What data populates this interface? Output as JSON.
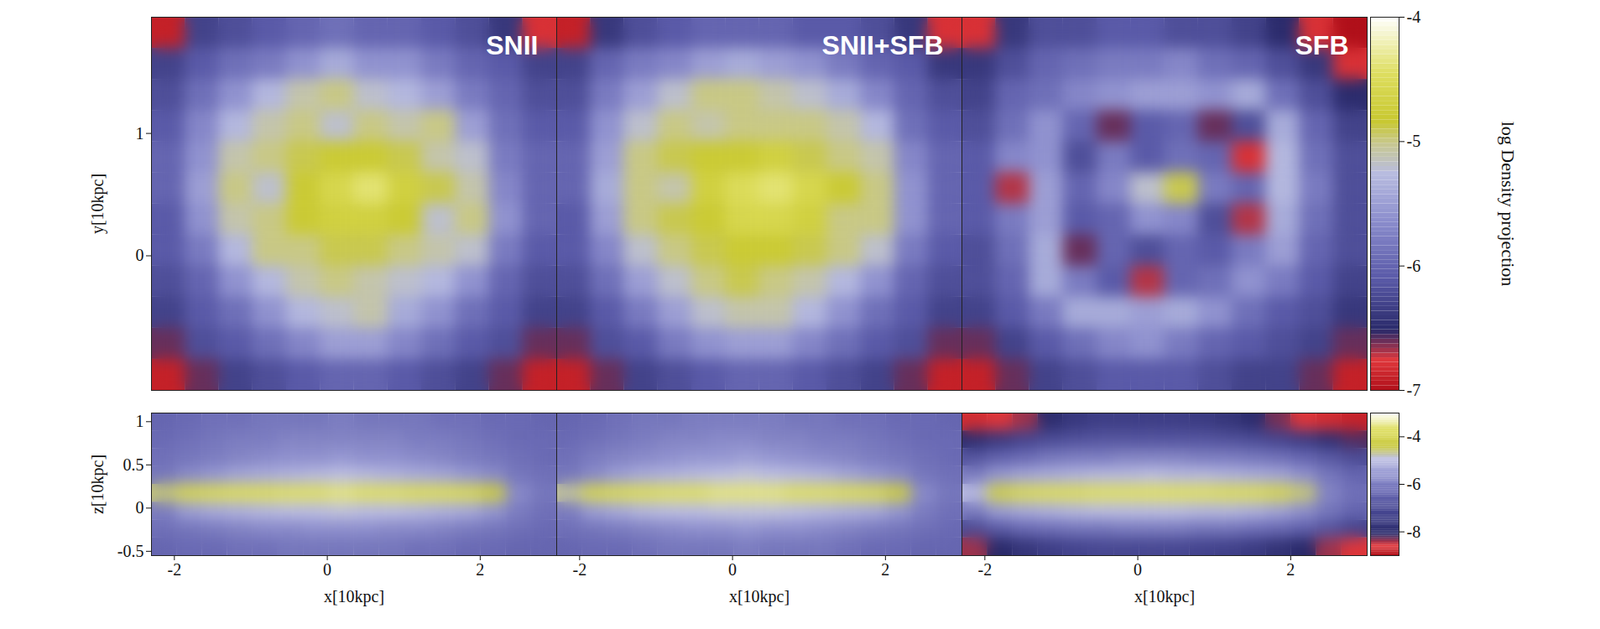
{
  "chart_data": [
    {
      "type": "heatmap",
      "xlim": [
        -1.1,
        2.0
      ],
      "ylim": [
        -1.1,
        1.95
      ],
      "yticks": [
        0,
        1
      ],
      "ylabel": "y[10kpc]",
      "tick_labels": "y",
      "colorbar": {
        "range": [
          -7,
          -4
        ],
        "ticks": [
          -4,
          -5,
          -6,
          -7
        ],
        "label": "log Density projection"
      },
      "panels": [
        {
          "title": "SNII",
          "values": [
            [
              -6.9,
              -6.3,
              -6.2,
              -6.1,
              -6.0,
              -5.9,
              -6.0,
              -6.0,
              -6.1,
              -6.2,
              -6.4,
              -6.8
            ],
            [
              -6.3,
              -6.1,
              -5.9,
              -5.8,
              -5.6,
              -5.4,
              -5.6,
              -5.6,
              -5.8,
              -6.0,
              -6.1,
              -6.3
            ],
            [
              -6.2,
              -5.9,
              -5.6,
              -5.3,
              -5.1,
              -5.0,
              -5.2,
              -5.3,
              -5.5,
              -5.8,
              -6.0,
              -6.2
            ],
            [
              -6.1,
              -5.7,
              -5.3,
              -5.1,
              -5.0,
              -5.2,
              -5.0,
              -5.1,
              -5.0,
              -5.5,
              -5.9,
              -6.1
            ],
            [
              -6.0,
              -5.6,
              -5.1,
              -5.0,
              -4.9,
              -4.8,
              -4.8,
              -4.9,
              -5.1,
              -5.2,
              -5.8,
              -6.0
            ],
            [
              -6.0,
              -5.5,
              -5.0,
              -5.2,
              -4.8,
              -4.6,
              -4.4,
              -4.7,
              -4.9,
              -5.1,
              -5.7,
              -6.0
            ],
            [
              -6.1,
              -5.6,
              -5.1,
              -5.0,
              -4.8,
              -4.7,
              -4.7,
              -4.8,
              -5.2,
              -5.0,
              -5.6,
              -6.0
            ],
            [
              -6.1,
              -5.8,
              -5.3,
              -5.0,
              -5.0,
              -4.9,
              -4.9,
              -5.0,
              -5.1,
              -5.2,
              -5.8,
              -6.1
            ],
            [
              -6.2,
              -6.0,
              -5.6,
              -5.3,
              -5.1,
              -5.0,
              -5.1,
              -5.2,
              -5.3,
              -5.6,
              -6.0,
              -6.2
            ],
            [
              -6.3,
              -6.1,
              -5.9,
              -5.6,
              -5.3,
              -5.2,
              -5.1,
              -5.4,
              -5.6,
              -5.9,
              -6.1,
              -6.3
            ],
            [
              -6.6,
              -6.2,
              -6.1,
              -5.9,
              -5.7,
              -5.5,
              -5.5,
              -5.7,
              -5.9,
              -6.1,
              -6.2,
              -6.6
            ],
            [
              -6.9,
              -6.6,
              -6.3,
              -6.2,
              -6.1,
              -6.0,
              -6.0,
              -6.1,
              -6.2,
              -6.3,
              -6.6,
              -6.9
            ]
          ]
        },
        {
          "title": "SNII+SFB",
          "values": [
            [
              -6.9,
              -6.4,
              -6.2,
              -6.1,
              -6.0,
              -6.0,
              -6.0,
              -6.1,
              -6.1,
              -6.2,
              -6.4,
              -6.8
            ],
            [
              -6.3,
              -6.0,
              -5.8,
              -5.7,
              -5.5,
              -5.4,
              -5.5,
              -5.6,
              -5.8,
              -6.0,
              -6.1,
              -6.4
            ],
            [
              -6.2,
              -5.8,
              -5.5,
              -5.2,
              -5.0,
              -5.0,
              -5.1,
              -5.2,
              -5.4,
              -5.7,
              -6.0,
              -6.2
            ],
            [
              -6.1,
              -5.6,
              -5.2,
              -5.0,
              -5.1,
              -5.0,
              -5.0,
              -5.0,
              -5.1,
              -5.3,
              -5.9,
              -6.1
            ],
            [
              -6.0,
              -5.5,
              -5.0,
              -4.9,
              -4.8,
              -4.8,
              -4.7,
              -4.9,
              -5.0,
              -5.1,
              -5.7,
              -6.0
            ],
            [
              -6.0,
              -5.4,
              -5.0,
              -5.1,
              -4.7,
              -4.5,
              -4.4,
              -4.6,
              -4.8,
              -5.0,
              -5.6,
              -6.0
            ],
            [
              -6.1,
              -5.5,
              -5.0,
              -4.9,
              -4.8,
              -4.6,
              -4.6,
              -4.7,
              -5.0,
              -5.0,
              -5.6,
              -6.0
            ],
            [
              -6.1,
              -5.7,
              -5.2,
              -5.0,
              -4.9,
              -4.8,
              -4.8,
              -4.9,
              -5.0,
              -5.2,
              -5.8,
              -6.1
            ],
            [
              -6.2,
              -5.9,
              -5.5,
              -5.2,
              -5.0,
              -4.9,
              -5.0,
              -5.1,
              -5.3,
              -5.6,
              -6.0,
              -6.2
            ],
            [
              -6.3,
              -6.1,
              -5.8,
              -5.5,
              -5.2,
              -5.1,
              -5.1,
              -5.3,
              -5.6,
              -5.9,
              -6.1,
              -6.3
            ],
            [
              -6.6,
              -6.2,
              -6.1,
              -5.8,
              -5.6,
              -5.5,
              -5.5,
              -5.7,
              -5.9,
              -6.1,
              -6.2,
              -6.6
            ],
            [
              -6.9,
              -6.6,
              -6.3,
              -6.2,
              -6.1,
              -6.0,
              -6.0,
              -6.1,
              -6.2,
              -6.3,
              -6.6,
              -6.9
            ]
          ]
        },
        {
          "title": "SFB",
          "values": [
            [
              -6.8,
              -6.4,
              -6.2,
              -6.2,
              -6.1,
              -6.1,
              -6.2,
              -6.2,
              -6.3,
              -6.5,
              -6.8,
              -7.0
            ],
            [
              -6.4,
              -6.2,
              -6.0,
              -5.9,
              -5.8,
              -5.8,
              -5.7,
              -5.9,
              -6.0,
              -6.2,
              -6.4,
              -6.8
            ],
            [
              -6.3,
              -6.0,
              -5.9,
              -5.7,
              -5.6,
              -5.5,
              -5.5,
              -5.6,
              -5.4,
              -5.9,
              -6.2,
              -6.5
            ],
            [
              -6.2,
              -5.9,
              -5.6,
              -6.0,
              -6.6,
              -6.1,
              -6.0,
              -6.6,
              -6.2,
              -5.4,
              -6.0,
              -6.3
            ],
            [
              -6.1,
              -5.7,
              -5.6,
              -6.2,
              -5.8,
              -6.1,
              -5.9,
              -6.0,
              -6.8,
              -5.3,
              -5.9,
              -6.2
            ],
            [
              -6.1,
              -6.7,
              -5.5,
              -6.0,
              -5.7,
              -5.2,
              -4.9,
              -5.8,
              -6.0,
              -5.3,
              -5.8,
              -6.2
            ],
            [
              -6.1,
              -5.8,
              -5.5,
              -6.1,
              -6.0,
              -5.6,
              -5.7,
              -6.2,
              -6.7,
              -5.4,
              -5.9,
              -6.2
            ],
            [
              -6.2,
              -5.9,
              -5.4,
              -6.6,
              -6.0,
              -6.2,
              -6.0,
              -6.1,
              -5.8,
              -5.5,
              -6.0,
              -6.2
            ],
            [
              -6.2,
              -6.0,
              -5.4,
              -5.8,
              -6.1,
              -6.7,
              -6.0,
              -5.9,
              -5.6,
              -5.8,
              -6.1,
              -6.3
            ],
            [
              -6.3,
              -6.1,
              -5.8,
              -5.4,
              -5.4,
              -5.5,
              -5.4,
              -5.6,
              -5.9,
              -6.1,
              -6.2,
              -6.4
            ],
            [
              -6.6,
              -6.3,
              -6.1,
              -5.9,
              -5.7,
              -5.6,
              -5.8,
              -6.0,
              -6.1,
              -6.2,
              -6.3,
              -6.6
            ],
            [
              -6.9,
              -6.6,
              -6.3,
              -6.2,
              -6.1,
              -6.1,
              -6.1,
              -6.2,
              -6.3,
              -6.3,
              -6.6,
              -6.9
            ]
          ]
        }
      ]
    },
    {
      "type": "heatmap",
      "xlim": [
        -2.3,
        3.0
      ],
      "ylim": [
        -0.55,
        1.1
      ],
      "xticks": [
        -2,
        0,
        2
      ],
      "yticks": [
        -0.5,
        0,
        0.5,
        1
      ],
      "xlabel": "x[10kpc]",
      "ylabel": "z[10kpc]",
      "colorbar": {
        "range": [
          -9,
          -3
        ],
        "ticks": [
          -4,
          -6,
          -8
        ]
      },
      "panels": [
        {
          "values": [
            [
              -6.4,
              -6.3,
              -6.2,
              -6.2,
              -6.1,
              -6.1,
              -6.1,
              -6.0,
              -6.1,
              -6.1,
              -6.1,
              -6.2,
              -6.2,
              -6.3,
              -6.3,
              -6.4
            ],
            [
              -6.3,
              -6.2,
              -6.1,
              -6.0,
              -6.0,
              -5.9,
              -5.9,
              -5.9,
              -5.9,
              -5.9,
              -6.0,
              -6.0,
              -6.1,
              -6.2,
              -6.3,
              -6.3
            ],
            [
              -6.2,
              -6.1,
              -6.0,
              -5.9,
              -5.8,
              -5.7,
              -5.7,
              -5.6,
              -5.7,
              -5.7,
              -5.8,
              -5.9,
              -6.0,
              -6.1,
              -6.2,
              -6.3
            ],
            [
              -6.1,
              -5.8,
              -5.6,
              -5.4,
              -5.3,
              -5.2,
              -5.1,
              -5.0,
              -5.1,
              -5.2,
              -5.3,
              -5.4,
              -5.6,
              -5.8,
              -6.1,
              -6.2
            ],
            [
              -4.6,
              -4.0,
              -3.9,
              -3.8,
              -3.8,
              -3.7,
              -3.7,
              -3.6,
              -3.7,
              -3.7,
              -3.8,
              -3.8,
              -3.9,
              -4.3,
              -5.8,
              -6.1
            ],
            [
              -6.0,
              -5.5,
              -5.3,
              -5.2,
              -5.1,
              -5.0,
              -5.0,
              -4.9,
              -5.0,
              -5.0,
              -5.1,
              -5.2,
              -5.3,
              -5.6,
              -6.0,
              -6.2
            ],
            [
              -6.2,
              -6.1,
              -6.0,
              -5.9,
              -5.8,
              -5.8,
              -5.7,
              -5.7,
              -5.7,
              -5.8,
              -5.8,
              -5.9,
              -6.0,
              -6.1,
              -6.2,
              -6.3
            ],
            [
              -6.4,
              -6.3,
              -6.3,
              -6.2,
              -6.2,
              -6.1,
              -6.1,
              -6.1,
              -6.1,
              -6.1,
              -6.2,
              -6.2,
              -6.3,
              -6.3,
              -6.4,
              -6.4
            ]
          ]
        },
        {
          "values": [
            [
              -6.4,
              -6.3,
              -6.2,
              -6.1,
              -6.1,
              -6.0,
              -6.0,
              -6.0,
              -6.0,
              -6.1,
              -6.1,
              -6.2,
              -6.2,
              -6.3,
              -6.3,
              -6.4
            ],
            [
              -6.3,
              -6.2,
              -6.1,
              -6.0,
              -5.9,
              -5.9,
              -5.8,
              -5.8,
              -5.9,
              -5.9,
              -6.0,
              -6.0,
              -6.1,
              -6.2,
              -6.3,
              -6.3
            ],
            [
              -6.2,
              -6.0,
              -5.9,
              -5.8,
              -5.7,
              -5.6,
              -5.6,
              -5.5,
              -5.6,
              -5.7,
              -5.8,
              -5.9,
              -6.0,
              -6.1,
              -6.2,
              -6.3
            ],
            [
              -6.1,
              -5.8,
              -5.5,
              -5.3,
              -5.2,
              -5.1,
              -5.0,
              -4.9,
              -5.0,
              -5.1,
              -5.2,
              -5.4,
              -5.6,
              -5.8,
              -6.1,
              -6.2
            ],
            [
              -4.7,
              -4.0,
              -3.9,
              -3.8,
              -3.7,
              -3.7,
              -3.6,
              -3.6,
              -3.6,
              -3.7,
              -3.7,
              -3.8,
              -3.9,
              -4.3,
              -5.8,
              -6.1
            ],
            [
              -6.0,
              -5.5,
              -5.3,
              -5.1,
              -5.0,
              -5.0,
              -4.9,
              -4.9,
              -4.9,
              -5.0,
              -5.1,
              -5.2,
              -5.3,
              -5.6,
              -6.0,
              -6.2
            ],
            [
              -6.2,
              -6.1,
              -6.0,
              -5.9,
              -5.8,
              -5.7,
              -5.7,
              -5.6,
              -5.7,
              -5.7,
              -5.8,
              -5.9,
              -6.0,
              -6.1,
              -6.2,
              -6.3
            ],
            [
              -6.4,
              -6.3,
              -6.3,
              -6.2,
              -6.1,
              -6.1,
              -6.1,
              -6.0,
              -6.1,
              -6.1,
              -6.1,
              -6.2,
              -6.3,
              -6.3,
              -6.4,
              -6.4
            ]
          ]
        },
        {
          "values": [
            [
              -8.7,
              -8.6,
              -8.4,
              -8.0,
              -7.6,
              -7.4,
              -7.4,
              -7.4,
              -7.4,
              -7.5,
              -7.7,
              -8.0,
              -8.3,
              -8.6,
              -8.7,
              -8.8
            ],
            [
              -8.0,
              -7.6,
              -7.2,
              -7.0,
              -6.9,
              -6.8,
              -6.8,
              -6.8,
              -6.8,
              -6.8,
              -6.9,
              -7.0,
              -7.2,
              -7.5,
              -7.9,
              -8.2
            ],
            [
              -6.8,
              -6.5,
              -6.3,
              -6.1,
              -6.0,
              -6.0,
              -5.9,
              -5.9,
              -5.9,
              -6.0,
              -6.0,
              -6.1,
              -6.2,
              -6.4,
              -6.7,
              -7.0
            ],
            [
              -6.0,
              -5.6,
              -5.4,
              -5.3,
              -5.2,
              -5.1,
              -5.1,
              -5.0,
              -5.1,
              -5.1,
              -5.2,
              -5.3,
              -5.4,
              -5.7,
              -6.1,
              -6.4
            ],
            [
              -5.0,
              -4.2,
              -3.9,
              -3.8,
              -3.8,
              -3.7,
              -3.7,
              -3.7,
              -3.7,
              -3.7,
              -3.8,
              -3.8,
              -4.0,
              -4.6,
              -5.9,
              -6.2
            ],
            [
              -6.0,
              -5.5,
              -5.3,
              -5.2,
              -5.1,
              -5.0,
              -5.0,
              -5.0,
              -5.0,
              -5.1,
              -5.1,
              -5.2,
              -5.4,
              -5.7,
              -6.1,
              -6.4
            ],
            [
              -7.0,
              -6.6,
              -6.3,
              -6.2,
              -6.1,
              -6.1,
              -6.0,
              -6.0,
              -6.0,
              -6.1,
              -6.1,
              -6.2,
              -6.3,
              -6.5,
              -6.8,
              -7.2
            ],
            [
              -8.4,
              -8.1,
              -7.7,
              -7.4,
              -7.2,
              -7.1,
              -7.1,
              -7.1,
              -7.1,
              -7.2,
              -7.3,
              -7.5,
              -7.8,
              -8.1,
              -8.4,
              -8.6
            ]
          ]
        }
      ]
    }
  ]
}
